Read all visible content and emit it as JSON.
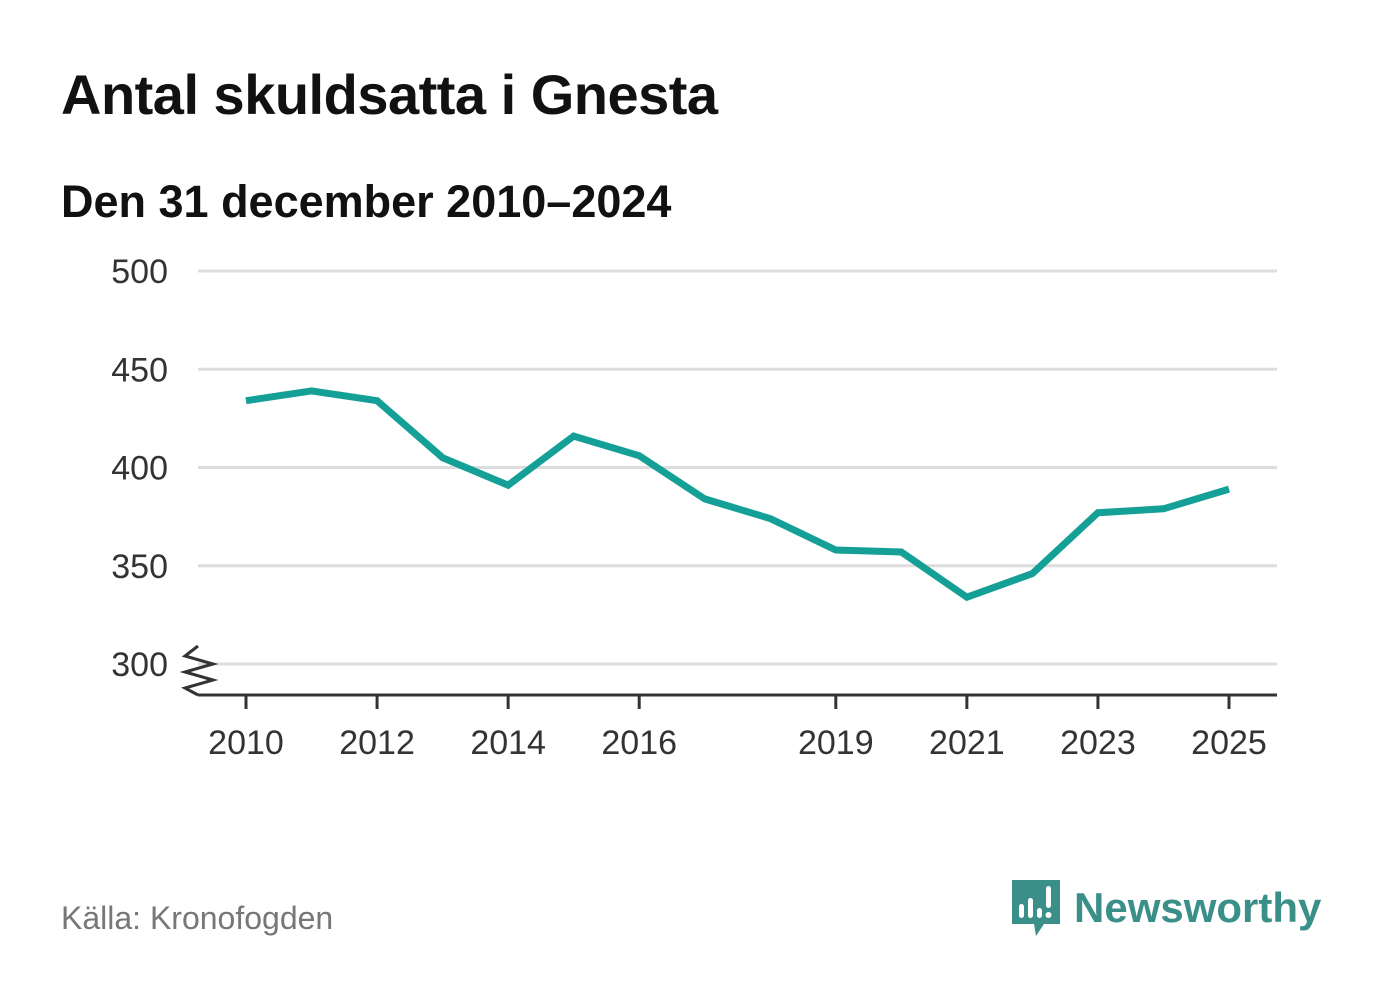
{
  "title": "Antal skuldsatta i Gnesta",
  "subtitle": "Den 31 december 2010–2024",
  "source": "Källa: Kronofogden",
  "brand": {
    "name": "Newsworthy",
    "icon": "newsworthy-logo-icon"
  },
  "colors": {
    "line": "#15a097",
    "grid": "#dddddd",
    "axis": "#333333",
    "brand": "#3a8f88"
  },
  "chart_data": {
    "type": "line",
    "title": "Antal skuldsatta i Gnesta",
    "subtitle": "Den 31 december 2010–2024",
    "xlabel": "",
    "ylabel": "",
    "ylim": [
      300,
      500
    ],
    "xlim": [
      2010,
      2025
    ],
    "y_ticks": [
      300,
      350,
      400,
      450,
      500
    ],
    "x_ticks": [
      "2010",
      "2012",
      "2014",
      "2016",
      "2019",
      "2021",
      "2023",
      "2025"
    ],
    "y_axis_break": true,
    "grid": true,
    "series": [
      {
        "name": "Antal skuldsatta",
        "x": [
          2010,
          2011,
          2012,
          2013,
          2014,
          2015,
          2016,
          2017,
          2018,
          2019,
          2020,
          2021,
          2022,
          2023,
          2024,
          2025
        ],
        "values": [
          434,
          439,
          434,
          405,
          391,
          416,
          406,
          384,
          374,
          358,
          357,
          334,
          346,
          377,
          379,
          389
        ]
      }
    ]
  }
}
